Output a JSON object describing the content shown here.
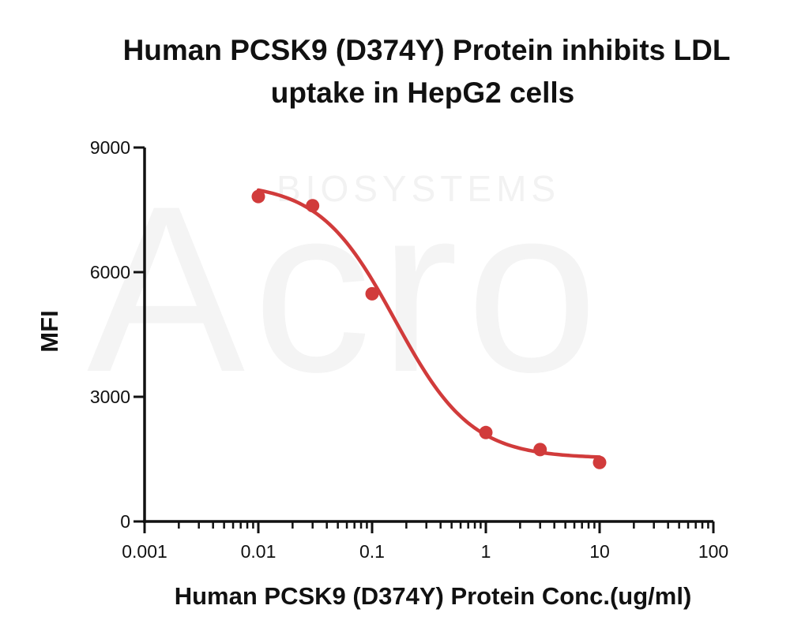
{
  "colors": {
    "series": "#d13b3b",
    "axis": "#111111",
    "watermark": "#f2f2f2"
  },
  "watermark": {
    "logo_text": "Acro",
    "sub_text": "BIOSYSTEMS"
  },
  "chart_data": {
    "type": "scatter",
    "title_lines": [
      "Human PCSK9 (D374Y) Protein inhibits LDL",
      "uptake in HepG2 cells"
    ],
    "xlabel": "Human PCSK9 (D374Y) Protein Conc.(ug/ml)",
    "ylabel": "MFI",
    "xscale": "log",
    "xlim": [
      0.001,
      100
    ],
    "ylim": [
      0,
      9000
    ],
    "x_ticks": [
      0.001,
      0.01,
      0.1,
      1,
      10,
      100
    ],
    "x_tick_labels": [
      "0.001",
      "0.01",
      "0.1",
      "1",
      "10",
      "100"
    ],
    "y_ticks": [
      0,
      3000,
      6000,
      9000
    ],
    "y_tick_labels": [
      "0",
      "3000",
      "6000",
      "9000"
    ],
    "grid": false,
    "legend": "none",
    "series": [
      {
        "x": [
          0.01,
          0.03,
          0.1,
          1,
          3,
          10
        ],
        "y": [
          7820,
          7600,
          5480,
          2140,
          1730,
          1420
        ],
        "fit": "four-parameter logistic",
        "fit_params": {
          "top": 8150,
          "bottom": 1520,
          "ec50": 0.16,
          "hill": 1.3
        }
      }
    ]
  }
}
